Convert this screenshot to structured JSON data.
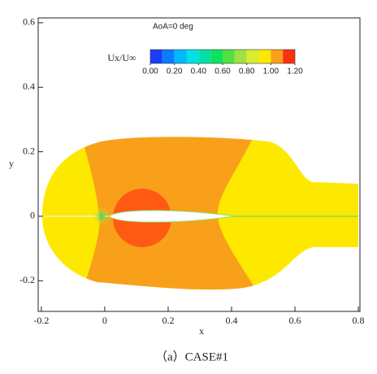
{
  "chart_data": {
    "type": "contour",
    "title": "AoA=0 deg",
    "xlabel": "x",
    "ylabel": "y",
    "xlim": [
      -0.21,
      0.805
    ],
    "ylim": [
      -0.295,
      0.615
    ],
    "xticks": [
      -0.2,
      0,
      0.2,
      0.4,
      0.6,
      0.8
    ],
    "yticks": [
      -0.2,
      0,
      0.2,
      0.4,
      0.6
    ],
    "colorbar": {
      "label": "Ux/U∞",
      "levels": [
        0,
        0.1,
        0.2,
        0.3,
        0.4,
        0.5,
        0.6,
        0.7,
        0.8,
        0.9,
        1.0,
        1.1,
        1.2
      ],
      "ticks": [
        {
          "value": 0,
          "label": "0.00"
        },
        {
          "value": 0.2,
          "label": "0.20"
        },
        {
          "value": 0.4,
          "label": "0.40"
        },
        {
          "value": 0.6,
          "label": "0.60"
        },
        {
          "value": 0.8,
          "label": "0.80"
        },
        {
          "value": 1.0,
          "label": "1.00"
        },
        {
          "value": 1.2,
          "label": "1.20"
        }
      ],
      "colors": [
        "#1a3cff",
        "#0a7cff",
        "#00b8ff",
        "#00e0e8",
        "#00e0a8",
        "#10e060",
        "#50e040",
        "#a0e040",
        "#d8ec30",
        "#fde800",
        "#f9a01b",
        "#ff3010"
      ]
    },
    "caption": "（a）CASE#1"
  }
}
